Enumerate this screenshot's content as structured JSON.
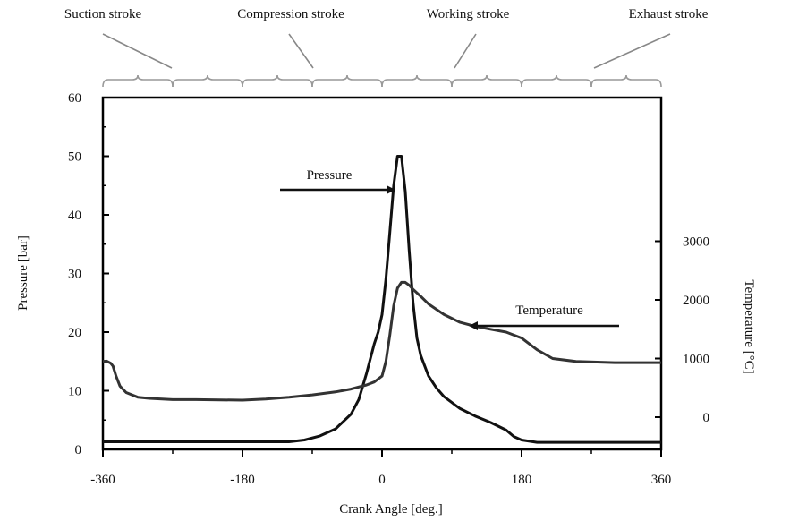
{
  "chart_data": {
    "type": "line",
    "title": "",
    "xlabel": "Crank Angle [deg.]",
    "ylabel": "Pressure [bar]",
    "y2label": "Temperature [°C]",
    "xlim": [
      -360,
      360
    ],
    "ylim": [
      0,
      60
    ],
    "y2lim": [
      0,
      3000
    ],
    "x_ticks": [
      -360,
      -180,
      0,
      180,
      360
    ],
    "y_ticks": [
      0,
      10,
      20,
      30,
      40,
      50,
      60
    ],
    "y2_ticks": [
      0,
      1000,
      2000,
      3000
    ],
    "grid": false,
    "strokes": [
      {
        "label": "Suction stroke",
        "range": [
          -360,
          -180
        ]
      },
      {
        "label": "Compression stroke",
        "range": [
          -180,
          0
        ]
      },
      {
        "label": "Working stroke",
        "range": [
          0,
          180
        ]
      },
      {
        "label": "Exhaust stroke",
        "range": [
          180,
          360
        ]
      }
    ],
    "series": [
      {
        "name": "Pressure",
        "axis": "left",
        "x": [
          -360,
          -300,
          -240,
          -180,
          -150,
          -120,
          -100,
          -80,
          -60,
          -40,
          -30,
          -20,
          -10,
          -5,
          0,
          5,
          10,
          15,
          20,
          25,
          30,
          35,
          40,
          45,
          50,
          60,
          70,
          80,
          90,
          100,
          120,
          140,
          160,
          170,
          180,
          200,
          240,
          300,
          360
        ],
        "y": [
          1.3,
          1.3,
          1.3,
          1.3,
          1.3,
          1.3,
          1.6,
          2.3,
          3.5,
          6,
          8.5,
          13,
          18,
          20,
          23,
          29,
          37,
          45,
          50,
          50,
          44,
          34,
          25,
          19,
          16,
          12.5,
          10.5,
          9,
          8,
          7,
          5.7,
          4.6,
          3.3,
          2.2,
          1.6,
          1.2,
          1.2,
          1.2,
          1.2
        ]
      },
      {
        "name": "Temperature",
        "axis": "right",
        "x": [
          -360,
          -355,
          -350,
          -347,
          -343,
          -338,
          -330,
          -315,
          -300,
          -270,
          -240,
          -180,
          -150,
          -120,
          -90,
          -60,
          -40,
          -20,
          -10,
          0,
          5,
          10,
          15,
          20,
          25,
          30,
          35,
          40,
          50,
          60,
          80,
          100,
          120,
          140,
          160,
          180,
          200,
          220,
          250,
          300,
          360
        ],
        "y": [
          950,
          955,
          920,
          870,
          700,
          530,
          420,
          340,
          320,
          300,
          300,
          290,
          310,
          340,
          380,
          430,
          480,
          550,
          600,
          700,
          950,
          1400,
          1900,
          2200,
          2300,
          2300,
          2250,
          2180,
          2060,
          1930,
          1750,
          1620,
          1550,
          1500,
          1450,
          1350,
          1150,
          1000,
          950,
          930,
          930
        ]
      }
    ],
    "annotations": [
      {
        "text": "Pressure",
        "points_to": "Pressure"
      },
      {
        "text": "Temperature",
        "points_to": "Temperature"
      }
    ]
  }
}
